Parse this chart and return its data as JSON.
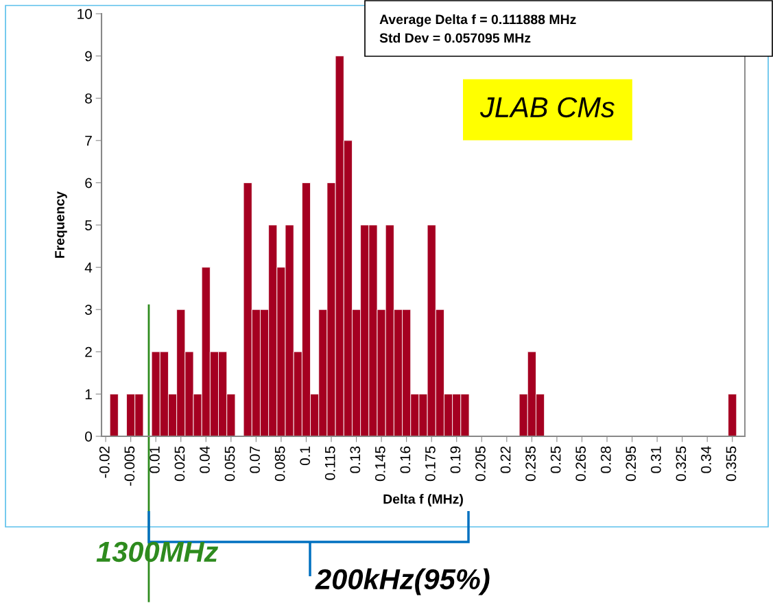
{
  "chart_data": {
    "type": "bar",
    "xlabel": "Delta f (MHz)",
    "ylabel": "Frequency",
    "color": "#a50021",
    "x": [
      -0.02,
      -0.015,
      -0.01,
      -0.005,
      0,
      0.005,
      0.01,
      0.015,
      0.02,
      0.025,
      0.03,
      0.035,
      0.04,
      0.045,
      0.05,
      0.055,
      0.06,
      0.065,
      0.07,
      0.075,
      0.08,
      0.085,
      0.09,
      0.095,
      0.1,
      0.105,
      0.11,
      0.115,
      0.12,
      0.125,
      0.13,
      0.135,
      0.14,
      0.145,
      0.15,
      0.155,
      0.16,
      0.165,
      0.17,
      0.175,
      0.18,
      0.185,
      0.19,
      0.195,
      0.2,
      0.205,
      0.21,
      0.215,
      0.22,
      0.225,
      0.23,
      0.235,
      0.24,
      0.245,
      0.25,
      0.255,
      0.26,
      0.265,
      0.27,
      0.275,
      0.28,
      0.285,
      0.29,
      0.295,
      0.3,
      0.305,
      0.31,
      0.315,
      0.32,
      0.325,
      0.33,
      0.335,
      0.34,
      0.345,
      0.35,
      0.355,
      0.36
    ],
    "values": [
      0,
      1,
      0,
      1,
      1,
      0,
      2,
      2,
      1,
      3,
      2,
      1,
      4,
      2,
      2,
      1,
      0,
      6,
      3,
      3,
      5,
      4,
      5,
      2,
      6,
      1,
      3,
      6,
      9,
      7,
      3,
      5,
      5,
      3,
      5,
      3,
      3,
      1,
      1,
      5,
      3,
      1,
      1,
      1,
      0,
      0,
      0,
      0,
      0,
      0,
      1,
      2,
      1,
      0,
      0,
      0,
      0,
      0,
      0,
      0,
      0,
      0,
      0,
      0,
      0,
      0,
      0,
      0,
      0,
      0,
      0,
      0,
      0,
      0,
      0,
      1,
      0
    ],
    "xlim": [
      -0.0225,
      0.3625
    ],
    "xticks": [
      -0.02,
      -0.005,
      0.01,
      0.025,
      0.04,
      0.055,
      0.07,
      0.085,
      0.1,
      0.115,
      0.13,
      0.145,
      0.16,
      0.175,
      0.19,
      0.205,
      0.22,
      0.235,
      0.25,
      0.265,
      0.28,
      0.295,
      0.31,
      0.325,
      0.34,
      0.355
    ],
    "ylim": [
      0,
      10
    ],
    "yticks": [
      0,
      1,
      2,
      3,
      4,
      5,
      6,
      7,
      8,
      9,
      10
    ],
    "grid": false,
    "annotations": [
      "Average Delta f = 0.111888 MHz",
      "Std Dev = 0.057095 MHz",
      "JLAB CMs",
      "200kHz(95%)"
    ],
    "ref_lines": [
      {
        "axis": "x",
        "value": 0.0058,
        "label": "1300MHz",
        "color": "#2e8b1e"
      }
    ]
  }
}
